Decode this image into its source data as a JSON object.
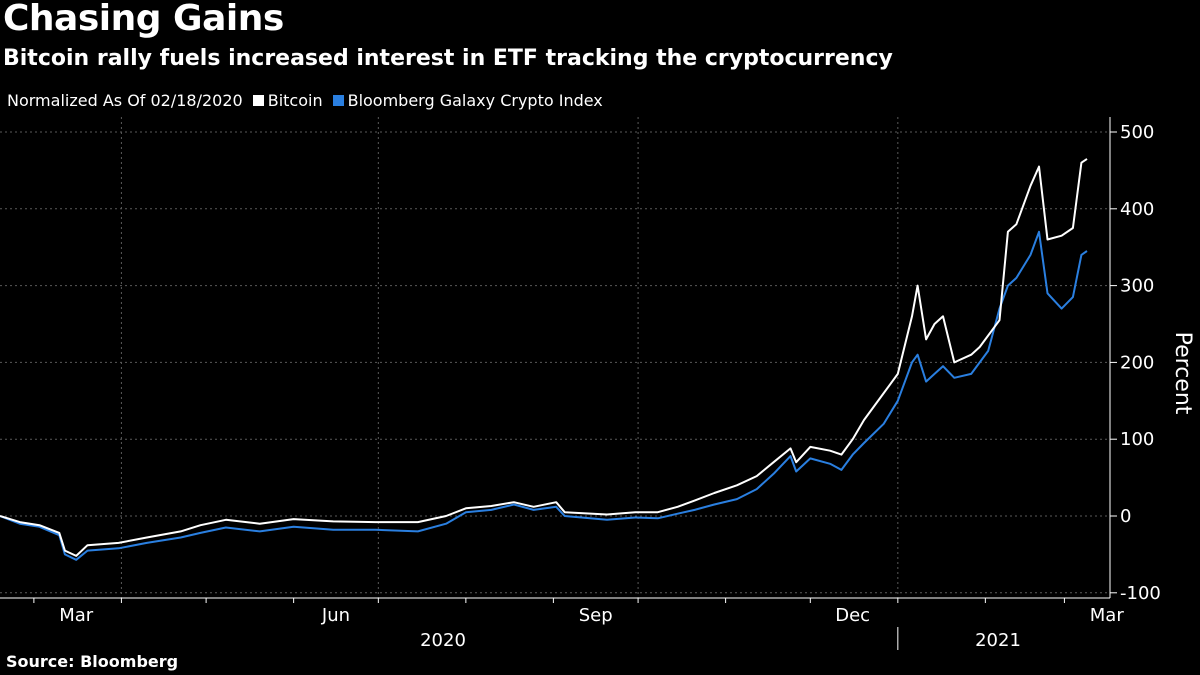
{
  "title": "Chasing Gains",
  "subtitle": "Bitcoin rally fuels increased interest in ETF tracking the cryptocurrency",
  "source": "Source: Bloomberg",
  "chart_data": {
    "type": "line",
    "legend_prefix": "Normalized As Of 02/18/2020",
    "legend_placement": "top-left",
    "ylabel": "Percent",
    "ylim": [
      -110,
      510
    ],
    "yticks": [
      -100,
      0,
      100,
      200,
      300,
      400,
      500
    ],
    "grid": true,
    "x_start": "2020-02-18",
    "x_end": "2021-03-09",
    "month_labels": [
      {
        "date": "2020-03-01",
        "label": "Mar"
      },
      {
        "date": "2020-06-01",
        "label": "Jun"
      },
      {
        "date": "2020-09-01",
        "label": "Sep"
      },
      {
        "date": "2020-12-01",
        "label": "Dec"
      },
      {
        "date": "2021-03-01",
        "label": "Mar"
      }
    ],
    "year_labels": [
      {
        "label": "2020",
        "start": "2020-02-18",
        "end": "2021-01-01"
      },
      {
        "label": "2021",
        "start": "2021-01-01",
        "end": "2021-03-09"
      }
    ],
    "series": [
      {
        "name": "Bitcoin",
        "color": "#ffffff",
        "points": [
          [
            "2020-02-18",
            0
          ],
          [
            "2020-02-25",
            -8
          ],
          [
            "2020-03-03",
            -12
          ],
          [
            "2020-03-10",
            -22
          ],
          [
            "2020-03-12",
            -45
          ],
          [
            "2020-03-16",
            -52
          ],
          [
            "2020-03-20",
            -38
          ],
          [
            "2020-03-31",
            -35
          ],
          [
            "2020-04-10",
            -28
          ],
          [
            "2020-04-22",
            -20
          ],
          [
            "2020-04-29",
            -12
          ],
          [
            "2020-05-08",
            -5
          ],
          [
            "2020-05-20",
            -10
          ],
          [
            "2020-06-01",
            -4
          ],
          [
            "2020-06-15",
            -7
          ],
          [
            "2020-06-30",
            -8
          ],
          [
            "2020-07-15",
            -8
          ],
          [
            "2020-07-25",
            0
          ],
          [
            "2020-08-01",
            10
          ],
          [
            "2020-08-10",
            13
          ],
          [
            "2020-08-18",
            18
          ],
          [
            "2020-08-25",
            12
          ],
          [
            "2020-09-02",
            18
          ],
          [
            "2020-09-05",
            5
          ],
          [
            "2020-09-20",
            2
          ],
          [
            "2020-09-30",
            5
          ],
          [
            "2020-10-08",
            5
          ],
          [
            "2020-10-15",
            12
          ],
          [
            "2020-10-21",
            20
          ],
          [
            "2020-10-28",
            30
          ],
          [
            "2020-11-05",
            40
          ],
          [
            "2020-11-12",
            52
          ],
          [
            "2020-11-18",
            70
          ],
          [
            "2020-11-24",
            88
          ],
          [
            "2020-11-26",
            70
          ],
          [
            "2020-12-01",
            90
          ],
          [
            "2020-12-08",
            85
          ],
          [
            "2020-12-12",
            80
          ],
          [
            "2020-12-16",
            100
          ],
          [
            "2020-12-20",
            125
          ],
          [
            "2020-12-27",
            160
          ],
          [
            "2021-01-01",
            185
          ],
          [
            "2021-01-06",
            260
          ],
          [
            "2021-01-08",
            300
          ],
          [
            "2021-01-11",
            230
          ],
          [
            "2021-01-14",
            250
          ],
          [
            "2021-01-17",
            260
          ],
          [
            "2021-01-21",
            200
          ],
          [
            "2021-01-27",
            210
          ],
          [
            "2021-01-30",
            220
          ],
          [
            "2021-02-02",
            235
          ],
          [
            "2021-02-06",
            255
          ],
          [
            "2021-02-09",
            370
          ],
          [
            "2021-02-12",
            380
          ],
          [
            "2021-02-17",
            430
          ],
          [
            "2021-02-20",
            455
          ],
          [
            "2021-02-23",
            360
          ],
          [
            "2021-02-28",
            365
          ],
          [
            "2021-03-04",
            375
          ],
          [
            "2021-03-07",
            460
          ],
          [
            "2021-03-09",
            465
          ]
        ]
      },
      {
        "name": "Bloomberg Galaxy Crypto Index",
        "color": "#2a7fe0",
        "points": [
          [
            "2020-02-18",
            0
          ],
          [
            "2020-02-25",
            -10
          ],
          [
            "2020-03-03",
            -14
          ],
          [
            "2020-03-10",
            -25
          ],
          [
            "2020-03-12",
            -50
          ],
          [
            "2020-03-16",
            -57
          ],
          [
            "2020-03-20",
            -45
          ],
          [
            "2020-03-31",
            -42
          ],
          [
            "2020-04-10",
            -35
          ],
          [
            "2020-04-22",
            -28
          ],
          [
            "2020-04-29",
            -22
          ],
          [
            "2020-05-08",
            -15
          ],
          [
            "2020-05-20",
            -20
          ],
          [
            "2020-06-01",
            -14
          ],
          [
            "2020-06-15",
            -18
          ],
          [
            "2020-06-30",
            -18
          ],
          [
            "2020-07-15",
            -20
          ],
          [
            "2020-07-25",
            -10
          ],
          [
            "2020-08-01",
            5
          ],
          [
            "2020-08-10",
            8
          ],
          [
            "2020-08-18",
            15
          ],
          [
            "2020-08-25",
            8
          ],
          [
            "2020-09-02",
            12
          ],
          [
            "2020-09-05",
            0
          ],
          [
            "2020-09-20",
            -5
          ],
          [
            "2020-09-30",
            -2
          ],
          [
            "2020-10-08",
            -3
          ],
          [
            "2020-10-15",
            3
          ],
          [
            "2020-10-21",
            8
          ],
          [
            "2020-10-28",
            15
          ],
          [
            "2020-11-05",
            22
          ],
          [
            "2020-11-12",
            35
          ],
          [
            "2020-11-18",
            55
          ],
          [
            "2020-11-24",
            78
          ],
          [
            "2020-11-26",
            58
          ],
          [
            "2020-12-01",
            75
          ],
          [
            "2020-12-08",
            68
          ],
          [
            "2020-12-12",
            60
          ],
          [
            "2020-12-16",
            80
          ],
          [
            "2020-12-20",
            95
          ],
          [
            "2020-12-27",
            120
          ],
          [
            "2021-01-01",
            150
          ],
          [
            "2021-01-06",
            200
          ],
          [
            "2021-01-08",
            210
          ],
          [
            "2021-01-11",
            175
          ],
          [
            "2021-01-14",
            185
          ],
          [
            "2021-01-17",
            195
          ],
          [
            "2021-01-21",
            180
          ],
          [
            "2021-01-27",
            185
          ],
          [
            "2021-01-30",
            200
          ],
          [
            "2021-02-02",
            215
          ],
          [
            "2021-02-06",
            270
          ],
          [
            "2021-02-09",
            300
          ],
          [
            "2021-02-12",
            310
          ],
          [
            "2021-02-17",
            340
          ],
          [
            "2021-02-20",
            370
          ],
          [
            "2021-02-23",
            290
          ],
          [
            "2021-02-28",
            270
          ],
          [
            "2021-03-04",
            285
          ],
          [
            "2021-03-07",
            340
          ],
          [
            "2021-03-09",
            345
          ]
        ]
      }
    ]
  }
}
